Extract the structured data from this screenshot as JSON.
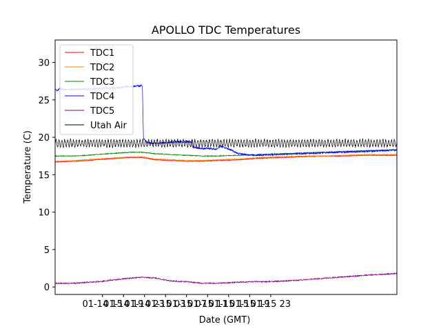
{
  "chart_data": {
    "type": "line",
    "title": "APOLLO TDC Temperatures",
    "xlabel": "Date (GMT)",
    "ylabel": "Temperature (C)",
    "xlim_hours": [
      6.0,
      71.0
    ],
    "ylim": [
      -1,
      33
    ],
    "yticks": [
      0,
      5,
      10,
      15,
      20,
      25,
      30
    ],
    "xticks": [
      {
        "hour": 15,
        "label": "01-14 15"
      },
      {
        "hour": 19,
        "label": "01-14 19"
      },
      {
        "hour": 23,
        "label": "01-14 23"
      },
      {
        "hour": 27,
        "label": "01-15 03"
      },
      {
        "hour": 31,
        "label": "01-15 07"
      },
      {
        "hour": 35,
        "label": "01-15 11"
      },
      {
        "hour": 39,
        "label": "01-15 15"
      },
      {
        "hour": 43,
        "label": "01-15 19"
      },
      {
        "hour": 47,
        "label": "01-15 23"
      }
    ],
    "legend_position": "top-left",
    "series": [
      {
        "name": "TDC1",
        "color": "#ff0000",
        "x": [
          6,
          10,
          14,
          18,
          20.5,
          22.5,
          25,
          28,
          31,
          34,
          37,
          41,
          45,
          49,
          53,
          57,
          61,
          65,
          69,
          71
        ],
        "values": [
          16.7,
          16.8,
          17.0,
          17.2,
          17.3,
          17.3,
          17.0,
          16.9,
          16.8,
          16.8,
          16.9,
          17.0,
          17.2,
          17.3,
          17.4,
          17.5,
          17.5,
          17.6,
          17.6,
          17.6
        ],
        "noise": 0.05
      },
      {
        "name": "TDC2",
        "color": "#ff8000",
        "x": [
          6,
          10,
          14,
          18,
          20.5,
          22.5,
          25,
          28,
          31,
          34,
          37,
          41,
          45,
          49,
          53,
          57,
          61,
          65,
          69,
          71
        ],
        "values": [
          16.8,
          16.9,
          17.1,
          17.3,
          17.4,
          17.4,
          17.1,
          17.0,
          16.9,
          16.9,
          17.0,
          17.1,
          17.3,
          17.4,
          17.5,
          17.5,
          17.6,
          17.7,
          17.7,
          17.7
        ],
        "noise": 0.05
      },
      {
        "name": "TDC3",
        "color": "#008000",
        "x": [
          6,
          10,
          14,
          18,
          20.5,
          22.5,
          25,
          28,
          31,
          34,
          37,
          41,
          45,
          49,
          53,
          57,
          61,
          65,
          69,
          71
        ],
        "values": [
          17.5,
          17.5,
          17.7,
          17.9,
          18.0,
          18.0,
          17.8,
          17.7,
          17.6,
          17.5,
          17.5,
          17.6,
          17.7,
          17.8,
          17.9,
          18.0,
          18.1,
          18.2,
          18.3,
          18.3
        ],
        "noise": 0.06
      },
      {
        "name": "TDC4",
        "color": "#0000ff",
        "x": [
          6,
          6.3,
          6.8,
          8,
          10,
          14,
          18,
          20,
          22.5,
          22.6,
          22.8,
          23.5,
          25,
          27,
          30,
          32,
          32.1,
          33,
          34,
          35.5,
          36.5,
          37.5,
          39.5,
          40,
          40.5,
          42,
          44,
          48,
          52,
          56,
          60,
          64,
          68,
          71
        ],
        "values": [
          26.5,
          26.2,
          26.5,
          26.4,
          26.4,
          26.5,
          26.6,
          26.8,
          26.9,
          26.9,
          19.8,
          19.3,
          19.2,
          19.3,
          19.4,
          19.4,
          18.7,
          18.6,
          18.5,
          18.5,
          18.4,
          18.8,
          18.3,
          18.1,
          17.9,
          17.7,
          17.6,
          17.7,
          17.8,
          17.9,
          18.0,
          18.1,
          18.2,
          18.3
        ],
        "noise": 0.12
      },
      {
        "name": "TDC5",
        "color": "#800080",
        "x": [
          6,
          10,
          14,
          18,
          20.5,
          22.5,
          25,
          28,
          31,
          34,
          37,
          40,
          43,
          46,
          50,
          54,
          58,
          62,
          66,
          71
        ],
        "values": [
          0.5,
          0.5,
          0.7,
          1.0,
          1.2,
          1.3,
          1.2,
          0.8,
          0.7,
          0.5,
          0.5,
          0.6,
          0.7,
          0.7,
          0.8,
          1.0,
          1.2,
          1.4,
          1.6,
          1.8
        ],
        "noise": 0.08
      },
      {
        "name": "Utah Air",
        "color": "#000000",
        "x": [
          6,
          71
        ],
        "values": [
          19.2,
          19.2
        ],
        "oscillation": 0.45,
        "period_hours": 0.55,
        "noise": 0.15
      }
    ]
  }
}
